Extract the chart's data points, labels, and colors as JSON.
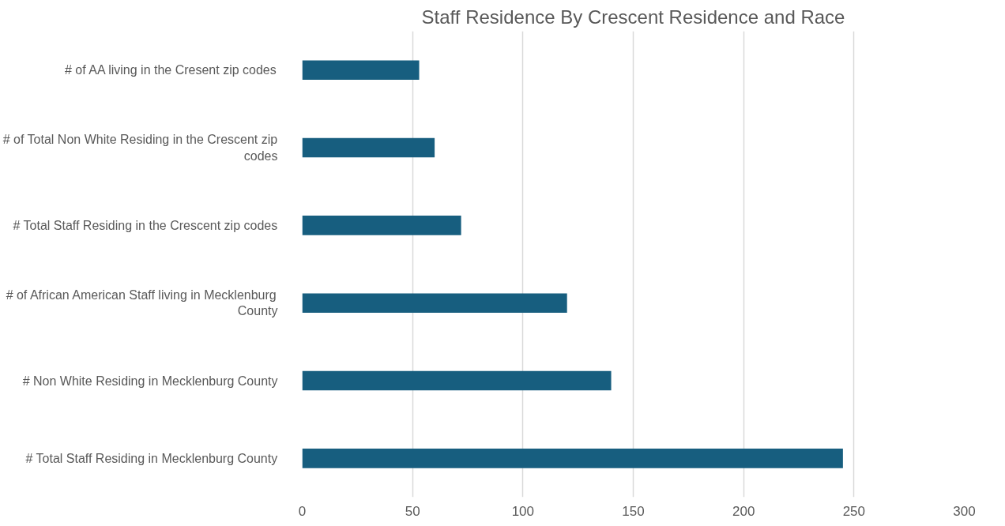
{
  "chart_data": {
    "type": "bar",
    "orientation": "horizontal",
    "title": "Staff Residence By Crescent Residence and Race",
    "categories": [
      "# of AA living in the Cresent zip codes",
      "# of Total Non White Residing in the Crescent zip codes",
      "# Total Staff Residing in the Crescent zip codes",
      "# of African American Staff living in Mecklenburg County",
      "# Non White Residing in Mecklenburg County",
      "# Total Staff Residing in Mecklenburg County"
    ],
    "values": [
      53,
      60,
      72,
      120,
      140,
      245
    ],
    "color": "#175e7f",
    "xlim": [
      0,
      300
    ],
    "xticks": [
      0,
      50,
      100,
      150,
      200,
      250,
      300
    ],
    "grid": "x"
  }
}
